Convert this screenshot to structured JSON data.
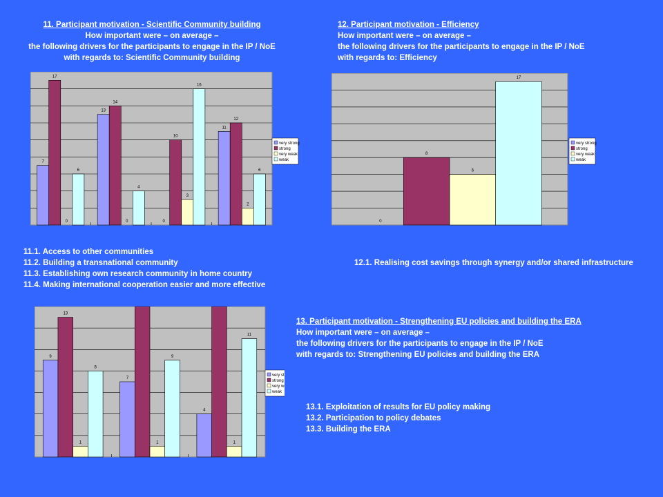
{
  "slide": {
    "chart11": {
      "header": {
        "title": "11. Participant motivation - Scientific Community building",
        "line2": "How important were – on average –",
        "line3": "the following drivers for the participants to engage in the IP / NoE",
        "line4": "with regards to: Scientific Community building"
      },
      "items": [
        "11.1. Access to other communities",
        "11.2. Building a transnational community",
        "11.3. Establishing own research  community in home country",
        "11.4. Making international cooperation easier and more effective"
      ]
    },
    "chart12": {
      "header": {
        "title": "12. Participant motivation - Efficiency",
        "line2": "How important were – on average –",
        "line3": "the following drivers for the participants to engage in the IP / NoE",
        "line4": "with regards to: Efficiency"
      },
      "items": [
        "12.1. Realising cost savings through synergy and/or shared infrastructure"
      ]
    },
    "chart13": {
      "header": {
        "title": "13. Participant motivation - Strengthening EU policies and building the ERA",
        "line2": "How important were – on average –",
        "line3": "the following drivers for the participants to engage in the IP / NoE",
        "line4": " with regards to: Strengthening EU policies and building the ERA"
      },
      "items": [
        "13.1. Exploitation of results for EU policy making",
        "13.2. Participation to policy debates",
        "13.3. Building the ERA"
      ]
    }
  },
  "colors": {
    "background": "#3366ff",
    "very_strong": "#9999ff",
    "strong": "#993366",
    "very_weak": "#ffffcc",
    "weak": "#ccffff",
    "plot_area": "#c0c0c0"
  },
  "chart_data": [
    {
      "type": "bar",
      "categories": [
        "11.1",
        "11.2",
        "11.3",
        "11.4"
      ],
      "series": [
        {
          "name": "very strong",
          "values": [
            7,
            13,
            0,
            11
          ]
        },
        {
          "name": "strong",
          "values": [
            17,
            14,
            10,
            12
          ]
        },
        {
          "name": "very weak",
          "values": [
            0,
            0,
            3,
            2
          ]
        },
        {
          "name": "weak",
          "values": [
            6,
            4,
            16,
            6
          ]
        }
      ],
      "ylim": [
        0,
        18
      ],
      "grid": true,
      "legend": "right"
    },
    {
      "type": "bar",
      "categories": [
        "12.1"
      ],
      "series": [
        {
          "name": "very strong",
          "values": [
            0
          ]
        },
        {
          "name": "strong",
          "values": [
            8
          ]
        },
        {
          "name": "very weak",
          "values": [
            6
          ]
        },
        {
          "name": "weak",
          "values": [
            17
          ]
        }
      ],
      "ylim": [
        0,
        18
      ],
      "grid": true,
      "legend": "right"
    },
    {
      "type": "bar",
      "categories": [
        "13.1",
        "13.2",
        "13.3"
      ],
      "series": [
        {
          "name": "very strong",
          "values": [
            9,
            7,
            4
          ]
        },
        {
          "name": "strong",
          "values": [
            13,
            14,
            14
          ]
        },
        {
          "name": "very weak",
          "values": [
            1,
            1,
            1
          ]
        },
        {
          "name": "weak",
          "values": [
            8,
            9,
            11
          ]
        }
      ],
      "ylim": [
        0,
        14
      ],
      "grid": true,
      "legend": "right"
    }
  ]
}
